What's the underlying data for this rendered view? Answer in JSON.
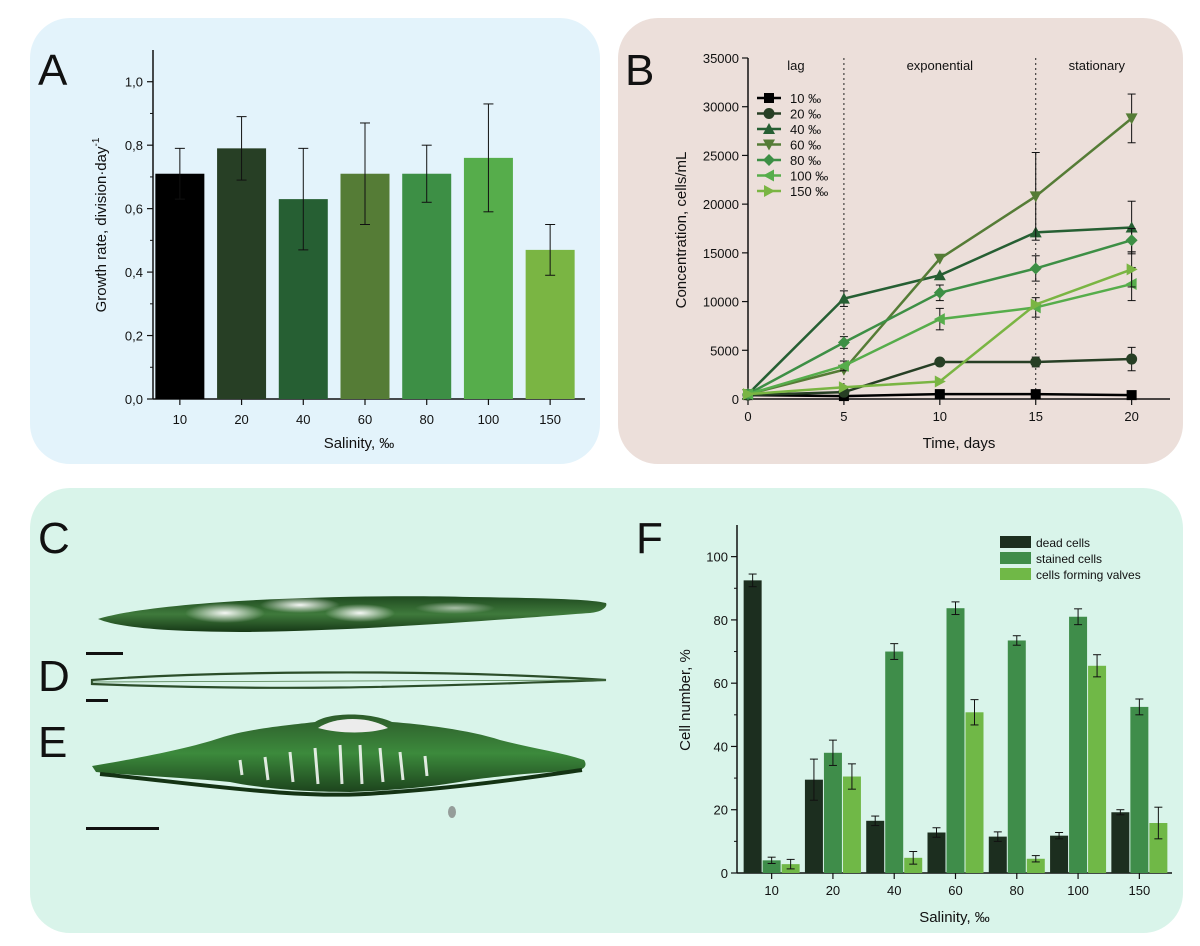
{
  "panels": {
    "a": "A",
    "b": "B",
    "c": "C",
    "d": "D",
    "e": "E",
    "f": "F"
  },
  "colors": {
    "panel_a_bg": "#e3f3fb",
    "panel_b_bg": "#ecdfda",
    "panel_cf_bg": "#d9f4ea",
    "salinity_10": "#000000",
    "salinity_20": "#273f25",
    "salinity_40": "#265f33",
    "salinity_60": "#557c36",
    "salinity_80": "#3d8f45",
    "salinity_100": "#56ad4b",
    "salinity_150": "#7ab543",
    "dead": "#1c2e1f",
    "stained": "#3f8d4a",
    "valves": "#70b847"
  },
  "chart_data": [
    {
      "id": "A",
      "type": "bar",
      "categories": [
        "10",
        "20",
        "40",
        "60",
        "80",
        "100",
        "150"
      ],
      "values": [
        0.71,
        0.79,
        0.63,
        0.71,
        0.71,
        0.76,
        0.47
      ],
      "errors": [
        0.08,
        0.1,
        0.16,
        0.16,
        0.09,
        0.17,
        0.08
      ],
      "ylim": [
        0,
        1.1
      ],
      "yticks": [
        "0,0",
        "0,2",
        "0,4",
        "0,6",
        "0,8",
        "1,0"
      ],
      "ytick_values": [
        0,
        0.2,
        0.4,
        0.6,
        0.8,
        1.0
      ],
      "xlabel": "Salinity, ‰",
      "ylabel": "Growth rate, division·day",
      "ylabel_sup": "-1"
    },
    {
      "id": "B",
      "type": "line",
      "x": [
        0,
        5,
        10,
        15,
        20
      ],
      "xticks": [
        "0",
        "5",
        "10",
        "15",
        "20"
      ],
      "xlim": [
        0,
        22
      ],
      "ylim": [
        0,
        35000
      ],
      "yticks": [
        "0",
        "5000",
        "10000",
        "15000",
        "20000",
        "25000",
        "30000",
        "35000"
      ],
      "ytick_values": [
        0,
        5000,
        10000,
        15000,
        20000,
        25000,
        30000,
        35000
      ],
      "xlabel": "Time, days",
      "ylabel": "Concentration, cells/mL",
      "phase_lines": [
        5,
        15
      ],
      "phases": [
        "lag",
        "exponential",
        "stationary"
      ],
      "legend_position": "top-left",
      "series": [
        {
          "name": "10 ‰",
          "marker": "square",
          "values": [
            400,
            300,
            500,
            500,
            400
          ],
          "errors": [
            0,
            0,
            0,
            0,
            0
          ]
        },
        {
          "name": "20 ‰",
          "marker": "circle",
          "values": [
            400,
            700,
            3800,
            3800,
            4100
          ],
          "errors": [
            0,
            0,
            0,
            500,
            1200
          ]
        },
        {
          "name": "40 ‰",
          "marker": "triangle-up",
          "values": [
            500,
            10300,
            12700,
            17100,
            17600
          ],
          "errors": [
            0,
            800,
            0,
            0,
            2700
          ]
        },
        {
          "name": "60 ‰",
          "marker": "triangle-down",
          "values": [
            500,
            3000,
            14400,
            20800,
            28800
          ],
          "errors": [
            0,
            0,
            0,
            4500,
            2500
          ]
        },
        {
          "name": "80 ‰",
          "marker": "diamond",
          "values": [
            500,
            5800,
            10900,
            13400,
            16300
          ],
          "errors": [
            0,
            600,
            800,
            1300,
            1200
          ]
        },
        {
          "name": "100 ‰",
          "marker": "triangle-left",
          "values": [
            500,
            3400,
            8200,
            9400,
            11800
          ],
          "errors": [
            0,
            500,
            1100,
            1000,
            1700
          ]
        },
        {
          "name": "150 ‰",
          "marker": "triangle-right",
          "values": [
            500,
            1200,
            1800,
            9700,
            13300
          ],
          "errors": [
            0,
            0,
            0,
            0,
            1800
          ]
        }
      ]
    },
    {
      "id": "F",
      "type": "bar",
      "categories": [
        "10",
        "20",
        "40",
        "60",
        "80",
        "100",
        "150"
      ],
      "ylim": [
        0,
        110
      ],
      "yticks": [
        "0",
        "20",
        "40",
        "60",
        "80",
        "100"
      ],
      "ytick_values": [
        0,
        20,
        40,
        60,
        80,
        100
      ],
      "xlabel": "Salinity, ‰",
      "ylabel": "Cell number, %",
      "legend_position": "top-right",
      "series": [
        {
          "name": "dead cells",
          "values": [
            92.5,
            29.5,
            16.5,
            12.8,
            11.5,
            11.8,
            19.2
          ],
          "errors": [
            2,
            6.5,
            1.5,
            1.5,
            1.5,
            1,
            0.8
          ]
        },
        {
          "name": "stained cells",
          "values": [
            4,
            38,
            70,
            83.7,
            73.5,
            81,
            52.5
          ],
          "errors": [
            1,
            4,
            2.5,
            2,
            1.5,
            2.5,
            2.5
          ]
        },
        {
          "name": "cells forming valves",
          "values": [
            2.8,
            30.5,
            4.8,
            50.8,
            4.5,
            65.5,
            15.8
          ],
          "errors": [
            1.5,
            4,
            2,
            4,
            1,
            3.5,
            5
          ]
        }
      ]
    }
  ]
}
